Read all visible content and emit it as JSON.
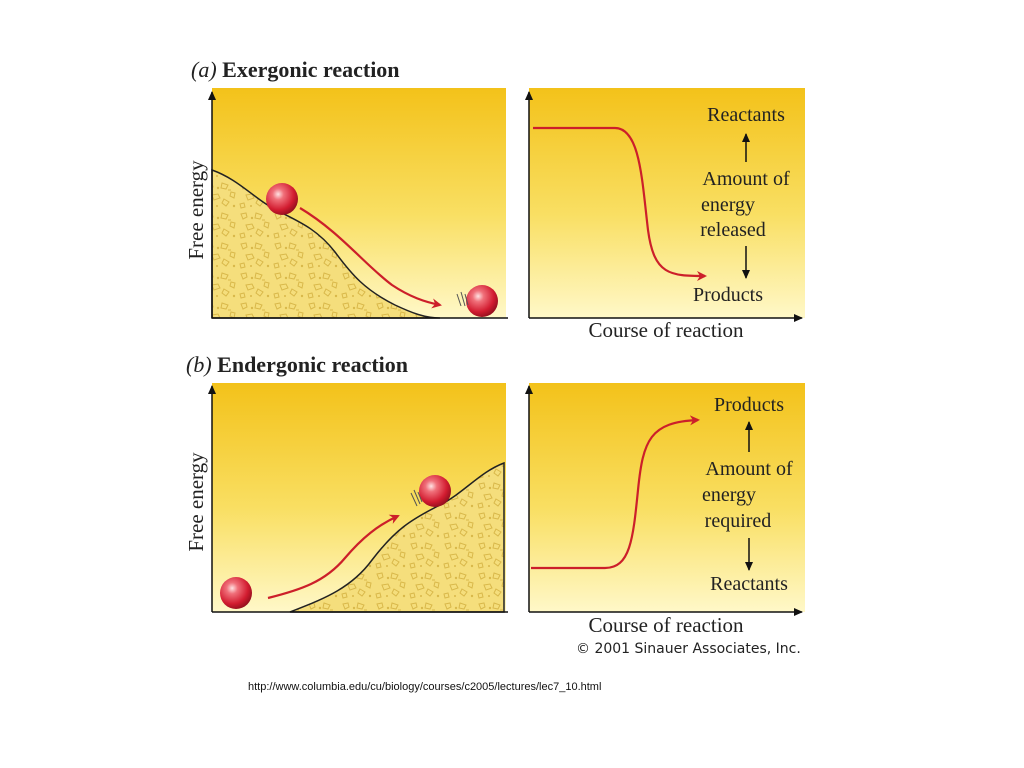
{
  "colors": {
    "panel_top": "#f3c21a",
    "panel_bottom": "#fff8c8",
    "arrow_red": "#cc1f2a",
    "ball": "#d8263a",
    "rock_fill": "#f5de7c"
  },
  "panel_a": {
    "letter": "(a)",
    "title": "Exergonic reaction",
    "ylabel": "Free energy",
    "xlabel": "Course of reaction",
    "top_label": "Reactants",
    "middle_label": [
      "Amount of",
      "energy",
      "released"
    ],
    "bottom_label": "Products"
  },
  "panel_b": {
    "letter": "(b)",
    "title": "Endergonic reaction",
    "ylabel": "Free energy",
    "xlabel": "Course of reaction",
    "top_label": "Products",
    "middle_label": [
      "Amount of",
      "energy",
      "required"
    ],
    "bottom_label": "Reactants"
  },
  "copyright": "© 2001 Sinauer Associates, Inc.",
  "source_url": "http://www.columbia.edu/cu/biology/courses/c2005/lectures/lec7_10.html"
}
